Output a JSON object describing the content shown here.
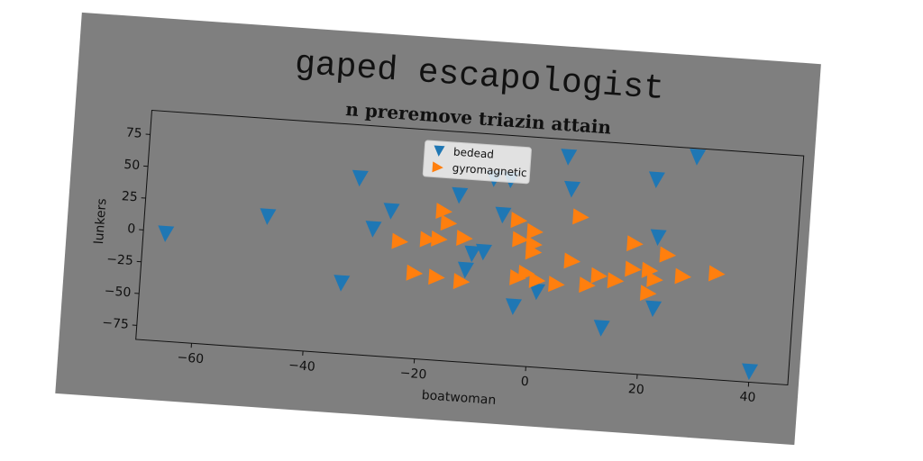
{
  "chart_data": {
    "type": "scatter",
    "title": "gaped escapologist",
    "subtitle": "n preremove triazin attain",
    "x_label": "boatwoman",
    "y_label": "lunkers",
    "xlim": [
      -70,
      47
    ],
    "ylim": [
      -86,
      94
    ],
    "xticks": [
      {
        "value": -60,
        "label": "−60"
      },
      {
        "value": -40,
        "label": "−40"
      },
      {
        "value": -20,
        "label": "−20"
      },
      0,
      20,
      40
    ],
    "yticks": [
      {
        "value": -75,
        "label": "−75"
      },
      {
        "value": -50,
        "label": "−50"
      },
      {
        "value": -25,
        "label": "−25"
      },
      0,
      25,
      50,
      75
    ],
    "legend": "upper center",
    "series": [
      {
        "name": "bedead",
        "color": "#1f77b4",
        "marker": "triangle-down",
        "x": [
          -66,
          -48,
          -32,
          -29,
          -26,
          -34,
          -14,
          -8,
          -5,
          -6,
          -11,
          -9,
          -12,
          -3,
          1,
          5,
          6,
          21,
          28,
          22,
          22,
          13,
          40
        ],
        "values": [
          -2,
          17,
          52,
          13,
          28,
          -31,
          44,
          59,
          59,
          31,
          -1,
          1,
          -14,
          -40,
          -27,
          80,
          55,
          67,
          87,
          22,
          -34,
          -52,
          -78
        ]
      },
      {
        "name": "gyromagnetic",
        "color": "#ff7f0e",
        "marker": "triangle-right",
        "x": [
          -24,
          -21,
          -19,
          -17,
          -16.5,
          -15.5,
          -12.5,
          -17,
          -12.5,
          -3,
          -2.5,
          0,
          0,
          0,
          -2.5,
          -1,
          1,
          4.5,
          7,
          8,
          10,
          12,
          15,
          18,
          18,
          21,
          22,
          21,
          24,
          27,
          33
        ],
        "values": [
          5,
          -19,
          8,
          9,
          31,
          22,
          11,
          -21,
          -23,
          28,
          13,
          20,
          10,
          4,
          -17,
          -13,
          -18,
          -20,
          -1,
          34,
          -19,
          -11,
          -14,
          16,
          -4,
          -4,
          -11,
          -22,
          9,
          -7,
          -3
        ]
      }
    ]
  }
}
